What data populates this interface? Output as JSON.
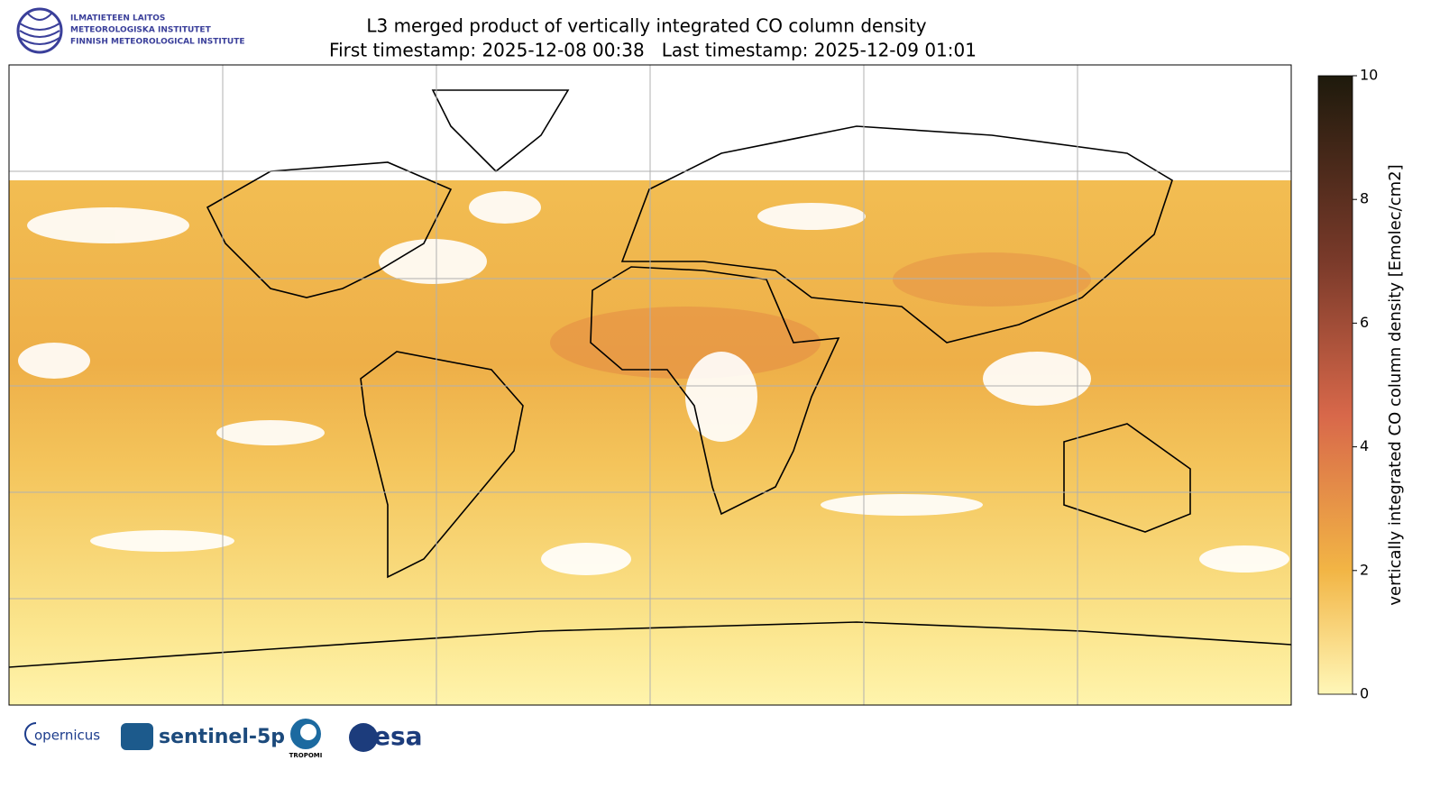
{
  "logo": {
    "lines": [
      "ILMATIETEEN LAITOS",
      "METEOROLOGISKA INSTITUTET",
      "FINNISH METEOROLOGICAL INSTITUTE"
    ]
  },
  "title": {
    "line1": "L3 merged product of vertically integrated CO column density",
    "line2": "First timestamp: 2025-12-08 00:38   Last timestamp: 2025-12-09 01:01"
  },
  "colorbar": {
    "label": "vertically integrated CO column density [Emolec/cm2]",
    "lim": [
      0,
      10
    ],
    "ticks": [
      0,
      2,
      4,
      6,
      8,
      10
    ]
  },
  "footer": {
    "copernicus": "opernicus",
    "sentinel": "sentinel-5p",
    "tropomi": "TROPOMI",
    "esa": "esa"
  }
}
